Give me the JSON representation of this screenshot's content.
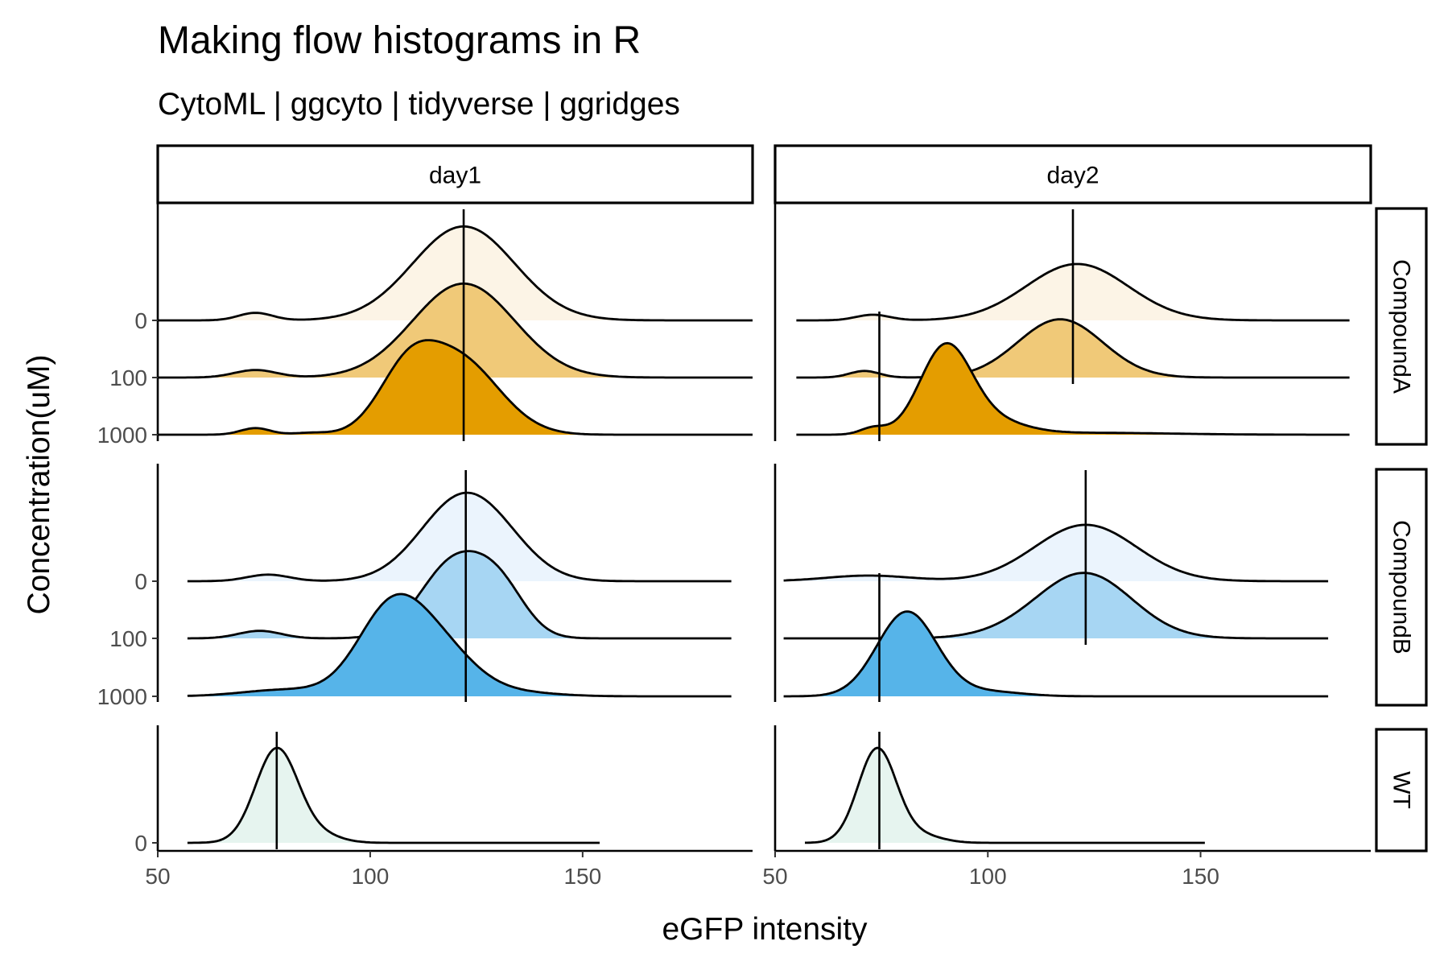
{
  "chart_data": {
    "type": "area",
    "subtype": "ridgeline",
    "title": "Making flow histograms in R",
    "subtitle": "CytoML | ggcyto | tidyverse | ggridges",
    "xlabel": "eGFP intensity",
    "ylabel": "Concentration(uM)",
    "xlim": [
      50,
      190
    ],
    "x_ticks": [
      50,
      100,
      150
    ],
    "columns": [
      "day1",
      "day2"
    ],
    "rows": [
      {
        "name": "CompoundA",
        "levels": [
          "0",
          "100",
          "1000"
        ]
      },
      {
        "name": "CompoundB",
        "levels": [
          "0",
          "100",
          "1000"
        ]
      },
      {
        "name": "WT",
        "levels": [
          "0"
        ]
      }
    ],
    "colors": {
      "CompoundA": [
        "#fcf4e6",
        "#f0c978",
        "#e49d00"
      ],
      "CompoundB": [
        "#ebf4fd",
        "#a7d6f3",
        "#56b4e9"
      ],
      "WT": [
        "#e6f4ef"
      ]
    },
    "grid": false,
    "legend": "none",
    "ridges": [
      {
        "row": "CompoundA",
        "col": "day1",
        "level": "0",
        "x_range": [
          50,
          190
        ],
        "vline": 122,
        "components": [
          {
            "mu": 73,
            "sd": 4,
            "w": 0.08
          },
          {
            "mu": 122,
            "sd": 12,
            "w": 1
          }
        ]
      },
      {
        "row": "CompoundA",
        "col": "day1",
        "level": "100",
        "x_range": [
          50,
          190
        ],
        "vline": 122,
        "components": [
          {
            "mu": 73,
            "sd": 5,
            "w": 0.08
          },
          {
            "mu": 122,
            "sd": 12,
            "w": 1
          }
        ]
      },
      {
        "row": "CompoundA",
        "col": "day1",
        "level": "1000",
        "x_range": [
          50,
          190
        ],
        "vline": 122,
        "components": [
          {
            "mu": 73,
            "sd": 3.5,
            "w": 0.07
          },
          {
            "mu": 86,
            "sd": 4,
            "w": 0.02
          },
          {
            "mu": 109,
            "sd": 7,
            "w": 0.7
          },
          {
            "mu": 121,
            "sd": 8,
            "w": 0.65
          },
          {
            "mu": 130,
            "sd": 8,
            "w": 0.15
          }
        ]
      },
      {
        "row": "CompoundA",
        "col": "day2",
        "level": "0",
        "x_range": [
          55,
          185
        ],
        "vline": 120,
        "components": [
          {
            "mu": 73,
            "sd": 4,
            "w": 0.06
          },
          {
            "mu": 121,
            "sd": 12,
            "w": 0.6
          }
        ]
      },
      {
        "row": "CompoundA",
        "col": "day2",
        "level": "100",
        "x_range": [
          55,
          185
        ],
        "vline": 120,
        "components": [
          {
            "mu": 71,
            "sd": 3.5,
            "w": 0.07
          },
          {
            "mu": 117,
            "sd": 10,
            "w": 0.62
          }
        ]
      },
      {
        "row": "CompoundA",
        "col": "day2",
        "level": "1000",
        "x_range": [
          55,
          185
        ],
        "vline": 74.5,
        "components": [
          {
            "mu": 73,
            "sd": 3,
            "w": 0.07
          },
          {
            "mu": 90,
            "sd": 6,
            "w": 0.9
          },
          {
            "mu": 100,
            "sd": 8,
            "w": 0.15
          },
          {
            "mu": 125,
            "sd": 18,
            "w": 0.02
          }
        ]
      },
      {
        "row": "CompoundB",
        "col": "day1",
        "level": "0",
        "x_range": [
          57,
          185
        ],
        "vline": 122.5,
        "components": [
          {
            "mu": 76,
            "sd": 5,
            "w": 0.07
          },
          {
            "mu": 122,
            "sd": 10,
            "w": 0.9
          },
          {
            "mu": 133,
            "sd": 8,
            "w": 0.1
          }
        ]
      },
      {
        "row": "CompoundB",
        "col": "day1",
        "level": "100",
        "x_range": [
          57,
          185
        ],
        "vline": 122.5,
        "components": [
          {
            "mu": 74,
            "sd": 5,
            "w": 0.08
          },
          {
            "mu": 120,
            "sd": 8,
            "w": 0.82
          },
          {
            "mu": 131,
            "sd": 6,
            "w": 0.4
          }
        ]
      },
      {
        "row": "CompoundB",
        "col": "day1",
        "level": "1000",
        "x_range": [
          57,
          185
        ],
        "vline": 122.5,
        "components": [
          {
            "mu": 80,
            "sd": 10,
            "w": 0.07
          },
          {
            "mu": 105,
            "sd": 8,
            "w": 0.92
          },
          {
            "mu": 117,
            "sd": 8,
            "w": 0.42
          },
          {
            "mu": 132,
            "sd": 10,
            "w": 0.05
          }
        ]
      },
      {
        "row": "CompoundB",
        "col": "day2",
        "level": "0",
        "x_range": [
          52,
          180
        ],
        "vline": 123,
        "components": [
          {
            "mu": 72,
            "sd": 10,
            "w": 0.06
          },
          {
            "mu": 123,
            "sd": 12,
            "w": 0.6
          }
        ]
      },
      {
        "row": "CompoundB",
        "col": "day2",
        "level": "100",
        "x_range": [
          52,
          180
        ],
        "vline": 123,
        "components": [
          {
            "mu": 123,
            "sd": 11,
            "w": 0.68
          },
          {
            "mu": 108,
            "sd": 10,
            "w": 0.05
          }
        ]
      },
      {
        "row": "CompoundB",
        "col": "day2",
        "level": "1000",
        "x_range": [
          52,
          180
        ],
        "vline": 74.5,
        "components": [
          {
            "mu": 81,
            "sd": 7,
            "w": 0.9
          },
          {
            "mu": 100,
            "sd": 8,
            "w": 0.05
          }
        ]
      },
      {
        "row": "WT",
        "col": "day1",
        "level": "0",
        "x_range": [
          57,
          154
        ],
        "vline": 78,
        "components": [
          {
            "mu": 78,
            "sd": 5,
            "w": 1
          },
          {
            "mu": 88,
            "sd": 5,
            "w": 0.08
          }
        ]
      },
      {
        "row": "WT",
        "col": "day2",
        "level": "0",
        "x_range": [
          57,
          151
        ],
        "vline": 74.5,
        "components": [
          {
            "mu": 74,
            "sd": 4.5,
            "w": 1
          },
          {
            "mu": 84,
            "sd": 5,
            "w": 0.08
          }
        ]
      }
    ]
  }
}
